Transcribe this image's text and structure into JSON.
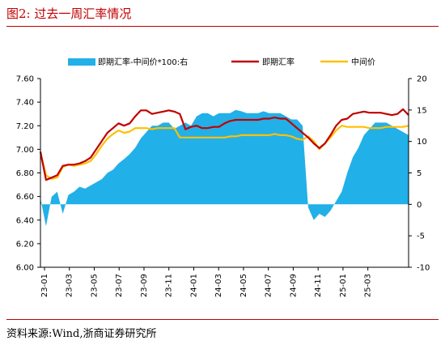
{
  "header": {
    "title": "图2:  过去一周汇率情况"
  },
  "footer": {
    "source": "资料来源:Wind,浙商证券研究所"
  },
  "chart_data": {
    "type": "line",
    "title": "图2:  过去一周汇率情况",
    "x_labels": [
      "23-01",
      "23-03",
      "23-05",
      "23-07",
      "23-09",
      "23-11",
      "24-01",
      "24-03",
      "24-05",
      "24-07",
      "24-09",
      "24-11",
      "25-01",
      "25-03"
    ],
    "left_axis": {
      "ylim": [
        6.0,
        7.6
      ],
      "ticks": [
        "6.00",
        "6.20",
        "6.40",
        "6.60",
        "6.80",
        "7.00",
        "7.20",
        "7.40",
        "7.60"
      ]
    },
    "right_axis": {
      "ylim": [
        -10,
        20
      ],
      "ticks": [
        "-10",
        "-5",
        "0",
        "5",
        "10",
        "15",
        "20"
      ]
    },
    "legend": {
      "placement": "top",
      "entries": [
        "即期汇率-中间价*100:右",
        "即期汇率",
        "中间价"
      ]
    },
    "colors": {
      "spread": "#22b0e8",
      "spot": "#c00000",
      "mid": "#ffc000"
    },
    "series": [
      {
        "name": "即期汇率-中间价*100:右",
        "axis": "right",
        "kind": "area",
        "values": [
          1.0,
          -3.5,
          1.2,
          2.0,
          -1.5,
          1.5,
          2.0,
          2.8,
          2.5,
          3.0,
          3.5,
          4.0,
          5.0,
          5.5,
          6.5,
          7.2,
          8.0,
          9.0,
          10.5,
          11.5,
          12.5,
          12.5,
          13.0,
          13.0,
          12.0,
          12.5,
          13.0,
          12.5,
          14.0,
          14.5,
          14.5,
          14.0,
          14.5,
          14.5,
          14.5,
          15.0,
          14.8,
          14.5,
          14.5,
          14.5,
          14.8,
          14.5,
          14.5,
          14.5,
          14.0,
          13.5,
          13.5,
          12.5,
          -0.5,
          -2.5,
          -1.5,
          -2.0,
          -1.0,
          0.5,
          2.0,
          5.0,
          7.5,
          9.0,
          11.0,
          12.0,
          13.0,
          13.0,
          13.0,
          12.5,
          12.0,
          11.5,
          11.0
        ]
      },
      {
        "name": "即期汇率",
        "axis": "left",
        "kind": "line",
        "values": [
          6.98,
          6.74,
          6.76,
          6.78,
          6.86,
          6.87,
          6.87,
          6.88,
          6.9,
          6.93,
          7.0,
          7.07,
          7.14,
          7.18,
          7.22,
          7.2,
          7.22,
          7.28,
          7.33,
          7.33,
          7.3,
          7.31,
          7.32,
          7.33,
          7.32,
          7.3,
          7.17,
          7.19,
          7.2,
          7.18,
          7.18,
          7.19,
          7.19,
          7.22,
          7.24,
          7.25,
          7.25,
          7.25,
          7.25,
          7.25,
          7.26,
          7.26,
          7.27,
          7.26,
          7.26,
          7.22,
          7.18,
          7.14,
          7.1,
          7.05,
          7.01,
          7.05,
          7.12,
          7.2,
          7.25,
          7.26,
          7.3,
          7.31,
          7.32,
          7.31,
          7.31,
          7.31,
          7.3,
          7.29,
          7.3,
          7.34,
          7.29
        ]
      },
      {
        "name": "中间价",
        "axis": "left",
        "kind": "line",
        "values": [
          6.97,
          6.78,
          6.75,
          6.76,
          6.85,
          6.87,
          6.86,
          6.87,
          6.88,
          6.9,
          6.96,
          7.03,
          7.09,
          7.13,
          7.16,
          7.14,
          7.15,
          7.18,
          7.18,
          7.18,
          7.17,
          7.18,
          7.18,
          7.18,
          7.18,
          7.1,
          7.1,
          7.1,
          7.1,
          7.1,
          7.1,
          7.1,
          7.1,
          7.1,
          7.11,
          7.11,
          7.12,
          7.12,
          7.12,
          7.12,
          7.12,
          7.12,
          7.13,
          7.12,
          7.12,
          7.11,
          7.09,
          7.08,
          7.11,
          7.07,
          7.0,
          7.05,
          7.1,
          7.16,
          7.2,
          7.19,
          7.19,
          7.19,
          7.19,
          7.18,
          7.18,
          7.18,
          7.19,
          7.19,
          7.19,
          7.19,
          7.2
        ]
      }
    ]
  }
}
